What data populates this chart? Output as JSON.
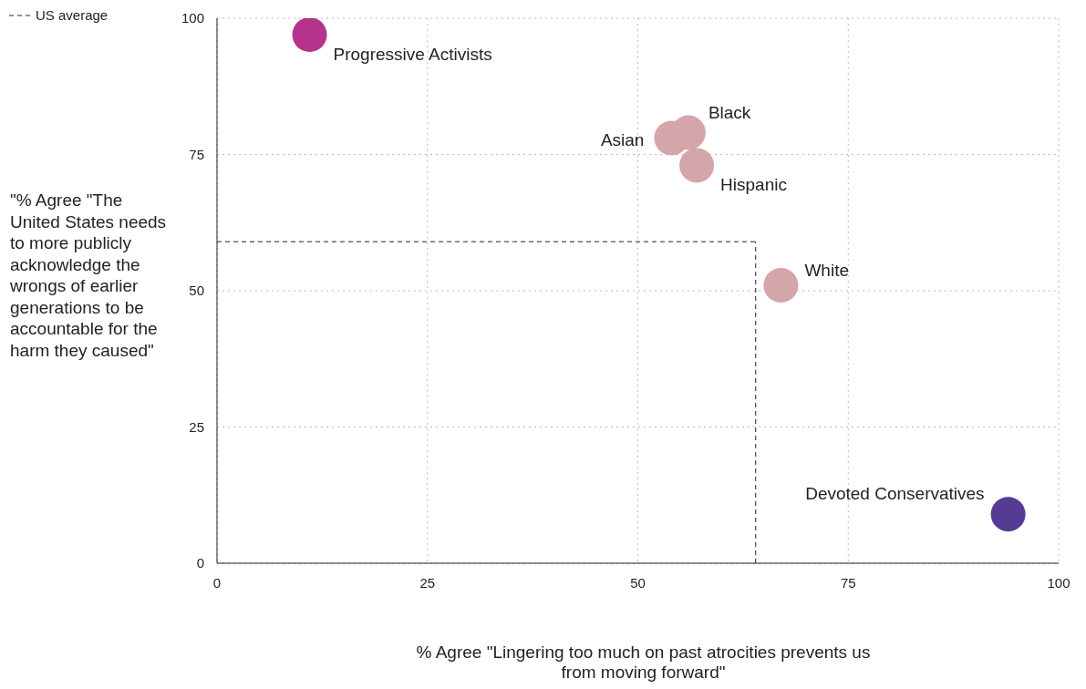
{
  "chart_data": {
    "type": "scatter",
    "xlabel": "% Agree \"Lingering too much on past atrocities prevents us from moving forward\"",
    "ylabel": "\"% Agree \"The United States needs to more publicly acknowledge the wrongs of earlier generations to be accountable for the harm they caused\"",
    "series": [
      {
        "name": "Progressive Activists",
        "color": "#b5338a",
        "x": [
          11
        ],
        "values": [
          97
        ]
      },
      {
        "name": "Asian",
        "color": "#d4a5a9",
        "x": [
          54
        ],
        "values": [
          78
        ]
      },
      {
        "name": "Black",
        "color": "#d4a5a9",
        "x": [
          56
        ],
        "values": [
          79
        ]
      },
      {
        "name": "Hispanic",
        "color": "#d4a5a9",
        "x": [
          57
        ],
        "values": [
          73
        ]
      },
      {
        "name": "White",
        "color": "#d4a5a9",
        "x": [
          67
        ],
        "values": [
          51
        ]
      },
      {
        "name": "Devoted Conservatives",
        "color": "#553c92",
        "x": [
          94
        ],
        "values": [
          9
        ]
      }
    ],
    "xlim": [
      0,
      100
    ],
    "xticks": [
      0,
      25,
      50,
      75,
      100
    ],
    "ylim": [
      0,
      100
    ],
    "yticks": [
      0,
      25,
      50,
      75,
      100
    ],
    "grid": true,
    "marker": "circle",
    "ref_lines": [
      {
        "axis": "x",
        "value": 64,
        "label": "US average",
        "line_style": "dashed",
        "color": "#222222"
      },
      {
        "axis": "y",
        "value": 59,
        "line_style": "dashed",
        "color": "#222222"
      }
    ]
  }
}
